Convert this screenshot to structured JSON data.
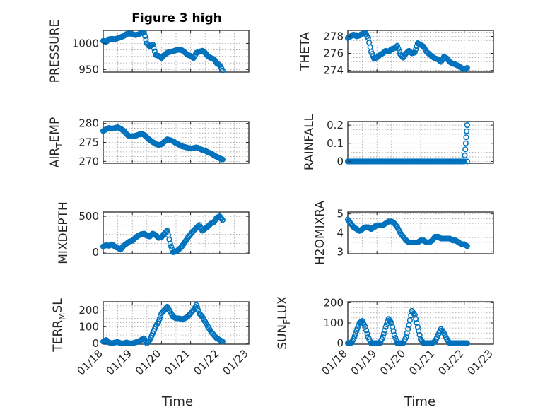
{
  "figure_title": "Figure 3 high",
  "colors": {
    "marker": "#0072BD",
    "axis": "#262626",
    "grid": "#8c8c8c"
  },
  "x_ticks": [
    {
      "value": 18,
      "label": "01/18"
    },
    {
      "value": 19,
      "label": "01/19"
    },
    {
      "value": 20,
      "label": "01/20"
    },
    {
      "value": 21,
      "label": "01/21"
    },
    {
      "value": 22,
      "label": "01/22"
    },
    {
      "value": 23,
      "label": "01/23"
    }
  ],
  "x_axis_label": "Time",
  "chart_data": [
    {
      "type": "scatter",
      "id": "pressure",
      "ylabel": "PRESSURE",
      "title": "Figure 3 high",
      "xlim": [
        18,
        23
      ],
      "ylim": [
        945,
        1025
      ],
      "yticks": [
        950,
        1000
      ],
      "grid": true,
      "x": [
        18.0,
        18.1,
        18.2,
        18.3,
        18.4,
        18.5,
        18.6,
        18.7,
        18.8,
        18.9,
        19.0,
        19.1,
        19.2,
        19.3,
        19.4,
        19.5,
        19.6,
        19.7,
        19.8,
        19.9,
        20.0,
        20.1,
        20.2,
        20.3,
        20.4,
        20.5,
        20.6,
        20.7,
        20.8,
        20.9,
        21.0,
        21.1,
        21.2,
        21.3,
        21.4,
        21.5,
        21.6,
        21.7,
        21.8,
        21.9,
        22.0,
        22.1
      ],
      "y": [
        1005,
        1003,
        1008,
        1009,
        1008,
        1010,
        1012,
        1014,
        1018,
        1019,
        1018,
        1016,
        1017,
        1020,
        1021,
        1000,
        994,
        998,
        978,
        976,
        972,
        978,
        982,
        984,
        985,
        987,
        988,
        987,
        983,
        978,
        976,
        972,
        982,
        984,
        986,
        982,
        975,
        972,
        970,
        962,
        958,
        948
      ]
    },
    {
      "type": "scatter",
      "id": "theta",
      "ylabel": "THETA",
      "xlim": [
        18,
        23
      ],
      "ylim": [
        273.8,
        278.7
      ],
      "yticks": [
        274,
        276,
        278
      ],
      "grid": true,
      "x": [
        18.0,
        18.1,
        18.2,
        18.3,
        18.4,
        18.5,
        18.6,
        18.7,
        18.8,
        18.9,
        19.0,
        19.1,
        19.2,
        19.3,
        19.4,
        19.5,
        19.6,
        19.7,
        19.8,
        19.9,
        20.0,
        20.1,
        20.2,
        20.3,
        20.4,
        20.5,
        20.6,
        20.7,
        20.8,
        20.9,
        21.0,
        21.1,
        21.2,
        21.3,
        21.4,
        21.5,
        21.6,
        21.7,
        21.8,
        21.9,
        22.0,
        22.1
      ],
      "y": [
        277.8,
        278.0,
        278.2,
        278.0,
        278.1,
        278.3,
        278.4,
        277.8,
        276.2,
        275.4,
        275.5,
        275.8,
        276.0,
        276.3,
        276.2,
        276.5,
        276.6,
        276.9,
        275.9,
        275.5,
        276.0,
        276.3,
        276.0,
        276.1,
        277.2,
        277.0,
        276.8,
        276.2,
        275.9,
        275.6,
        275.4,
        275.3,
        275.0,
        275.6,
        275.4,
        275.0,
        274.8,
        274.7,
        274.5,
        274.3,
        274.1,
        274.3
      ]
    },
    {
      "type": "scatter",
      "id": "air_temp",
      "ylabel": "AIR_TEMP",
      "xlim": [
        18,
        23
      ],
      "ylim": [
        269.5,
        280.5
      ],
      "yticks": [
        270,
        275,
        280
      ],
      "grid": true,
      "x": [
        18.0,
        18.1,
        18.2,
        18.3,
        18.4,
        18.5,
        18.6,
        18.7,
        18.8,
        18.9,
        19.0,
        19.1,
        19.2,
        19.3,
        19.4,
        19.5,
        19.6,
        19.7,
        19.8,
        19.9,
        20.0,
        20.1,
        20.2,
        20.3,
        20.4,
        20.5,
        20.6,
        20.7,
        20.8,
        20.9,
        21.0,
        21.1,
        21.2,
        21.3,
        21.4,
        21.5,
        21.6,
        21.7,
        21.8,
        21.9,
        22.0,
        22.1
      ],
      "y": [
        278.0,
        278.5,
        278.8,
        278.6,
        278.8,
        279.0,
        278.6,
        278.1,
        277.2,
        276.6,
        276.6,
        276.7,
        277.0,
        277.3,
        277.0,
        276.3,
        275.6,
        275.1,
        274.6,
        274.3,
        274.5,
        275.2,
        275.8,
        275.6,
        275.3,
        274.8,
        274.4,
        274.0,
        273.8,
        273.6,
        273.4,
        273.5,
        273.7,
        273.4,
        273.0,
        272.8,
        272.4,
        272.1,
        271.6,
        271.2,
        270.8,
        270.5
      ]
    },
    {
      "type": "scatter",
      "id": "rainfall",
      "ylabel": "RAINFALL",
      "xlim": [
        18,
        23
      ],
      "ylim": [
        -0.01,
        0.22
      ],
      "yticks": [
        0,
        0.1,
        0.2
      ],
      "grid": true,
      "x": [
        18.0,
        18.1,
        18.2,
        18.3,
        18.4,
        18.5,
        18.6,
        18.7,
        18.8,
        18.9,
        19.0,
        19.1,
        19.2,
        19.3,
        19.4,
        19.5,
        19.6,
        19.7,
        19.8,
        19.9,
        20.0,
        20.1,
        20.2,
        20.3,
        20.4,
        20.5,
        20.6,
        20.7,
        20.8,
        20.9,
        21.0,
        21.1,
        21.2,
        21.3,
        21.4,
        21.5,
        21.6,
        21.7,
        21.8,
        21.9,
        22.0,
        22.05,
        22.1,
        22.1
      ],
      "y": [
        0,
        0,
        0,
        0,
        0,
        0,
        0,
        0,
        0,
        0,
        0,
        0,
        0,
        0,
        0,
        0,
        0,
        0,
        0,
        0,
        0,
        0,
        0,
        0,
        0,
        0,
        0,
        0,
        0,
        0,
        0,
        0,
        0,
        0,
        0,
        0,
        0,
        0,
        0,
        0,
        0,
        0.1,
        0.2,
        0
      ]
    },
    {
      "type": "scatter",
      "id": "mixdepth",
      "ylabel": "MIXDEPTH",
      "xlim": [
        18,
        23
      ],
      "ylim": [
        -20,
        560
      ],
      "yticks": [
        0,
        500
      ],
      "grid": true,
      "x": [
        18.0,
        18.1,
        18.2,
        18.3,
        18.4,
        18.5,
        18.6,
        18.7,
        18.8,
        18.9,
        19.0,
        19.1,
        19.2,
        19.3,
        19.4,
        19.5,
        19.6,
        19.7,
        19.8,
        19.9,
        20.0,
        20.1,
        20.2,
        20.3,
        20.4,
        20.5,
        20.6,
        20.7,
        20.8,
        20.9,
        21.0,
        21.1,
        21.2,
        21.3,
        21.4,
        21.5,
        21.6,
        21.7,
        21.8,
        21.9,
        22.0,
        22.1
      ],
      "y": [
        80,
        100,
        90,
        110,
        80,
        60,
        40,
        90,
        120,
        150,
        160,
        200,
        230,
        250,
        260,
        230,
        220,
        260,
        240,
        200,
        210,
        260,
        300,
        120,
        0,
        10,
        40,
        80,
        140,
        200,
        250,
        300,
        340,
        380,
        300,
        330,
        360,
        400,
        420,
        480,
        500,
        450
      ]
    },
    {
      "type": "scatter",
      "id": "h2omixra",
      "ylabel": "H2OMIXRA",
      "xlim": [
        18,
        23
      ],
      "ylim": [
        2.9,
        5.1
      ],
      "yticks": [
        3,
        4,
        5
      ],
      "grid": true,
      "x": [
        18.0,
        18.1,
        18.2,
        18.3,
        18.4,
        18.5,
        18.6,
        18.7,
        18.8,
        18.9,
        19.0,
        19.1,
        19.2,
        19.3,
        19.4,
        19.5,
        19.6,
        19.7,
        19.8,
        19.9,
        20.0,
        20.1,
        20.2,
        20.3,
        20.4,
        20.5,
        20.6,
        20.7,
        20.8,
        20.9,
        21.0,
        21.1,
        21.2,
        21.3,
        21.4,
        21.5,
        21.6,
        21.7,
        21.8,
        21.9,
        22.0,
        22.1
      ],
      "y": [
        4.7,
        4.5,
        4.3,
        4.2,
        4.1,
        4.2,
        4.3,
        4.3,
        4.2,
        4.3,
        4.4,
        4.4,
        4.4,
        4.5,
        4.6,
        4.6,
        4.5,
        4.3,
        4.0,
        3.8,
        3.6,
        3.5,
        3.5,
        3.5,
        3.5,
        3.6,
        3.6,
        3.5,
        3.5,
        3.6,
        3.8,
        3.8,
        3.7,
        3.7,
        3.7,
        3.7,
        3.6,
        3.6,
        3.5,
        3.4,
        3.4,
        3.3
      ]
    },
    {
      "type": "scatter",
      "id": "terr_msl",
      "ylabel": "TERR_MSL",
      "xlim": [
        18,
        23
      ],
      "ylim": [
        -5,
        250
      ],
      "yticks": [
        0,
        100,
        200
      ],
      "grid": true,
      "x": [
        18.0,
        18.1,
        18.2,
        18.3,
        18.4,
        18.5,
        18.6,
        18.7,
        18.8,
        18.9,
        19.0,
        19.1,
        19.2,
        19.3,
        19.4,
        19.5,
        19.6,
        19.7,
        19.8,
        19.9,
        20.0,
        20.1,
        20.2,
        20.3,
        20.4,
        20.5,
        20.6,
        20.7,
        20.8,
        20.9,
        21.0,
        21.1,
        21.2,
        21.3,
        21.4,
        21.5,
        21.6,
        21.7,
        21.8,
        21.9,
        22.0,
        22.1
      ],
      "y": [
        10,
        20,
        5,
        0,
        5,
        8,
        0,
        0,
        5,
        0,
        0,
        5,
        10,
        20,
        30,
        0,
        20,
        60,
        100,
        130,
        180,
        200,
        220,
        190,
        160,
        150,
        150,
        145,
        150,
        160,
        180,
        200,
        230,
        180,
        160,
        130,
        100,
        70,
        50,
        30,
        20,
        10
      ]
    },
    {
      "type": "scatter",
      "id": "sun_flux",
      "ylabel": "SUN_FLUX",
      "xlim": [
        18,
        23
      ],
      "ylim": [
        -5,
        205
      ],
      "yticks": [
        0,
        100,
        200
      ],
      "grid": true,
      "x": [
        18.0,
        18.1,
        18.2,
        18.3,
        18.4,
        18.5,
        18.6,
        18.7,
        18.8,
        18.9,
        19.0,
        19.1,
        19.2,
        19.3,
        19.4,
        19.5,
        19.6,
        19.7,
        19.8,
        19.9,
        20.0,
        20.1,
        20.2,
        20.3,
        20.4,
        20.5,
        20.6,
        20.7,
        20.8,
        20.9,
        21.0,
        21.1,
        21.2,
        21.3,
        21.4,
        21.5,
        21.6,
        21.7,
        21.8,
        21.9,
        22.0,
        22.1
      ],
      "y": [
        0,
        0,
        20,
        60,
        100,
        110,
        80,
        30,
        0,
        0,
        0,
        0,
        30,
        80,
        120,
        100,
        40,
        0,
        0,
        0,
        30,
        90,
        160,
        140,
        80,
        20,
        0,
        0,
        0,
        0,
        10,
        40,
        70,
        50,
        20,
        0,
        0,
        0,
        0,
        0,
        0,
        0
      ]
    }
  ]
}
